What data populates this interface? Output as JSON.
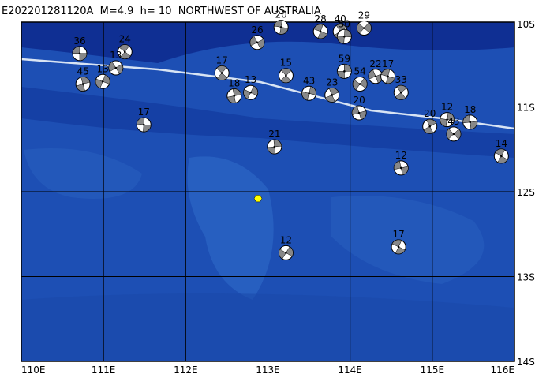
{
  "chart_data": {
    "type": "map",
    "title": "E202201281120A  M=4.9  h= 10  NORTHWEST OF AUSTRALIA",
    "xlim": [
      110,
      116
    ],
    "ylim": [
      -14,
      -10
    ],
    "xticks": [
      {
        "value": 110,
        "label": "110E"
      },
      {
        "value": 111,
        "label": "111E"
      },
      {
        "value": 112,
        "label": "112E"
      },
      {
        "value": 113,
        "label": "113E"
      },
      {
        "value": 114,
        "label": "114E"
      },
      {
        "value": 115,
        "label": "115E"
      },
      {
        "value": 116,
        "label": "116E"
      }
    ],
    "yticks": [
      {
        "value": -10,
        "label": "10S"
      },
      {
        "value": -11,
        "label": "11S"
      },
      {
        "value": -12,
        "label": "12S"
      },
      {
        "value": -13,
        "label": "13S"
      },
      {
        "value": -14,
        "label": "14S"
      }
    ],
    "grid": true,
    "events": {
      "x": [
        110.71,
        111.26,
        110.75,
        110.99,
        111.15,
        111.49,
        112.44,
        112.59,
        112.79,
        112.87,
        113.16,
        113.22,
        113.08,
        113.22,
        114.31,
        114.46,
        114.62,
        113.93,
        114.12,
        114.11,
        113.64,
        113.88,
        113.93,
        114.17,
        114.62,
        114.59,
        114.97,
        115.18,
        115.26,
        115.46,
        115.84,
        113.78,
        113.5
      ],
      "y": [
        -10.37,
        -10.35,
        -10.73,
        -10.7,
        -10.54,
        -11.21,
        -10.6,
        -10.87,
        -10.83,
        -10.24,
        -10.06,
        -10.63,
        -11.47,
        -12.72,
        -10.64,
        -10.64,
        -10.83,
        -10.58,
        -10.73,
        -11.07,
        -10.11,
        -10.11,
        -10.17,
        -10.07,
        -11.72,
        -12.65,
        -11.23,
        -11.15,
        -11.32,
        -11.18,
        -11.58,
        -10.86,
        -10.84
      ],
      "depths": [
        36,
        24,
        45,
        13,
        13,
        17,
        17,
        18,
        13,
        26,
        20,
        15,
        21,
        12,
        22,
        17,
        33,
        59,
        54,
        20,
        28,
        40,
        50,
        29,
        12,
        17,
        20,
        12,
        43,
        18,
        14,
        23,
        43
      ]
    },
    "epicenter": {
      "x": 112.88,
      "y": -12.08,
      "color": "#ffff00"
    }
  }
}
